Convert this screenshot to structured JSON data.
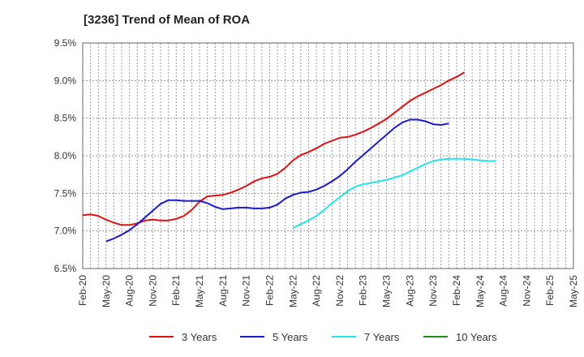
{
  "chart_data": {
    "type": "line",
    "title": "[3236]  Trend of Mean of ROA",
    "xlabel": "",
    "ylabel": "",
    "ylim": [
      6.5,
      9.5
    ],
    "yticks": [
      "6.5%",
      "7.0%",
      "7.5%",
      "8.0%",
      "8.5%",
      "9.0%",
      "9.5%"
    ],
    "ytick_values": [
      6.5,
      7.0,
      7.5,
      8.0,
      8.5,
      9.0,
      9.5
    ],
    "xticks": [
      "Feb-20",
      "May-20",
      "Aug-20",
      "Nov-20",
      "Feb-21",
      "May-21",
      "Aug-21",
      "Nov-21",
      "Feb-22",
      "May-22",
      "Aug-22",
      "Nov-22",
      "Feb-23",
      "May-23",
      "Aug-23",
      "Nov-23",
      "Feb-24",
      "May-24",
      "Aug-24",
      "Nov-24",
      "Feb-25",
      "May-25"
    ],
    "grid": true,
    "legend_position": "bottom",
    "series": [
      {
        "name": "3 Years",
        "color": "#dd1111",
        "start_index": 0,
        "values": [
          7.21,
          7.22,
          7.2,
          7.15,
          7.11,
          7.08,
          7.08,
          7.1,
          7.14,
          7.15,
          7.14,
          7.14,
          7.16,
          7.2,
          7.28,
          7.39,
          7.46,
          7.47,
          7.48,
          7.51,
          7.55,
          7.6,
          7.66,
          7.7,
          7.72,
          7.76,
          7.84,
          7.94,
          8.01,
          8.05,
          8.1,
          8.16,
          8.2,
          8.24,
          8.25,
          8.28,
          8.32,
          8.37,
          8.43,
          8.49,
          8.57,
          8.65,
          8.73,
          8.79,
          8.84,
          8.89,
          8.94,
          9.0,
          9.05,
          9.11
        ]
      },
      {
        "name": "5 Years",
        "color": "#1a1acc",
        "start_index": 3,
        "values": [
          6.86,
          6.9,
          6.95,
          7.01,
          7.09,
          7.18,
          7.27,
          7.36,
          7.41,
          7.41,
          7.4,
          7.4,
          7.4,
          7.37,
          7.32,
          7.29,
          7.3,
          7.31,
          7.31,
          7.3,
          7.3,
          7.31,
          7.35,
          7.43,
          7.48,
          7.51,
          7.52,
          7.55,
          7.6,
          7.66,
          7.73,
          7.82,
          7.92,
          8.01,
          8.1,
          8.19,
          8.28,
          8.37,
          8.44,
          8.48,
          8.48,
          8.46,
          8.42,
          8.41,
          8.43
        ]
      },
      {
        "name": "7 Years",
        "color": "#22e5e5",
        "start_index": 27,
        "values": [
          7.04,
          7.09,
          7.14,
          7.2,
          7.28,
          7.37,
          7.45,
          7.53,
          7.59,
          7.62,
          7.64,
          7.66,
          7.68,
          7.71,
          7.74,
          7.79,
          7.84,
          7.89,
          7.93,
          7.95,
          7.96,
          7.96,
          7.96,
          7.95,
          7.94,
          7.93,
          7.93
        ]
      },
      {
        "name": "10 Years",
        "color": "#1e8c1e",
        "start_index": 0,
        "values": []
      }
    ]
  }
}
